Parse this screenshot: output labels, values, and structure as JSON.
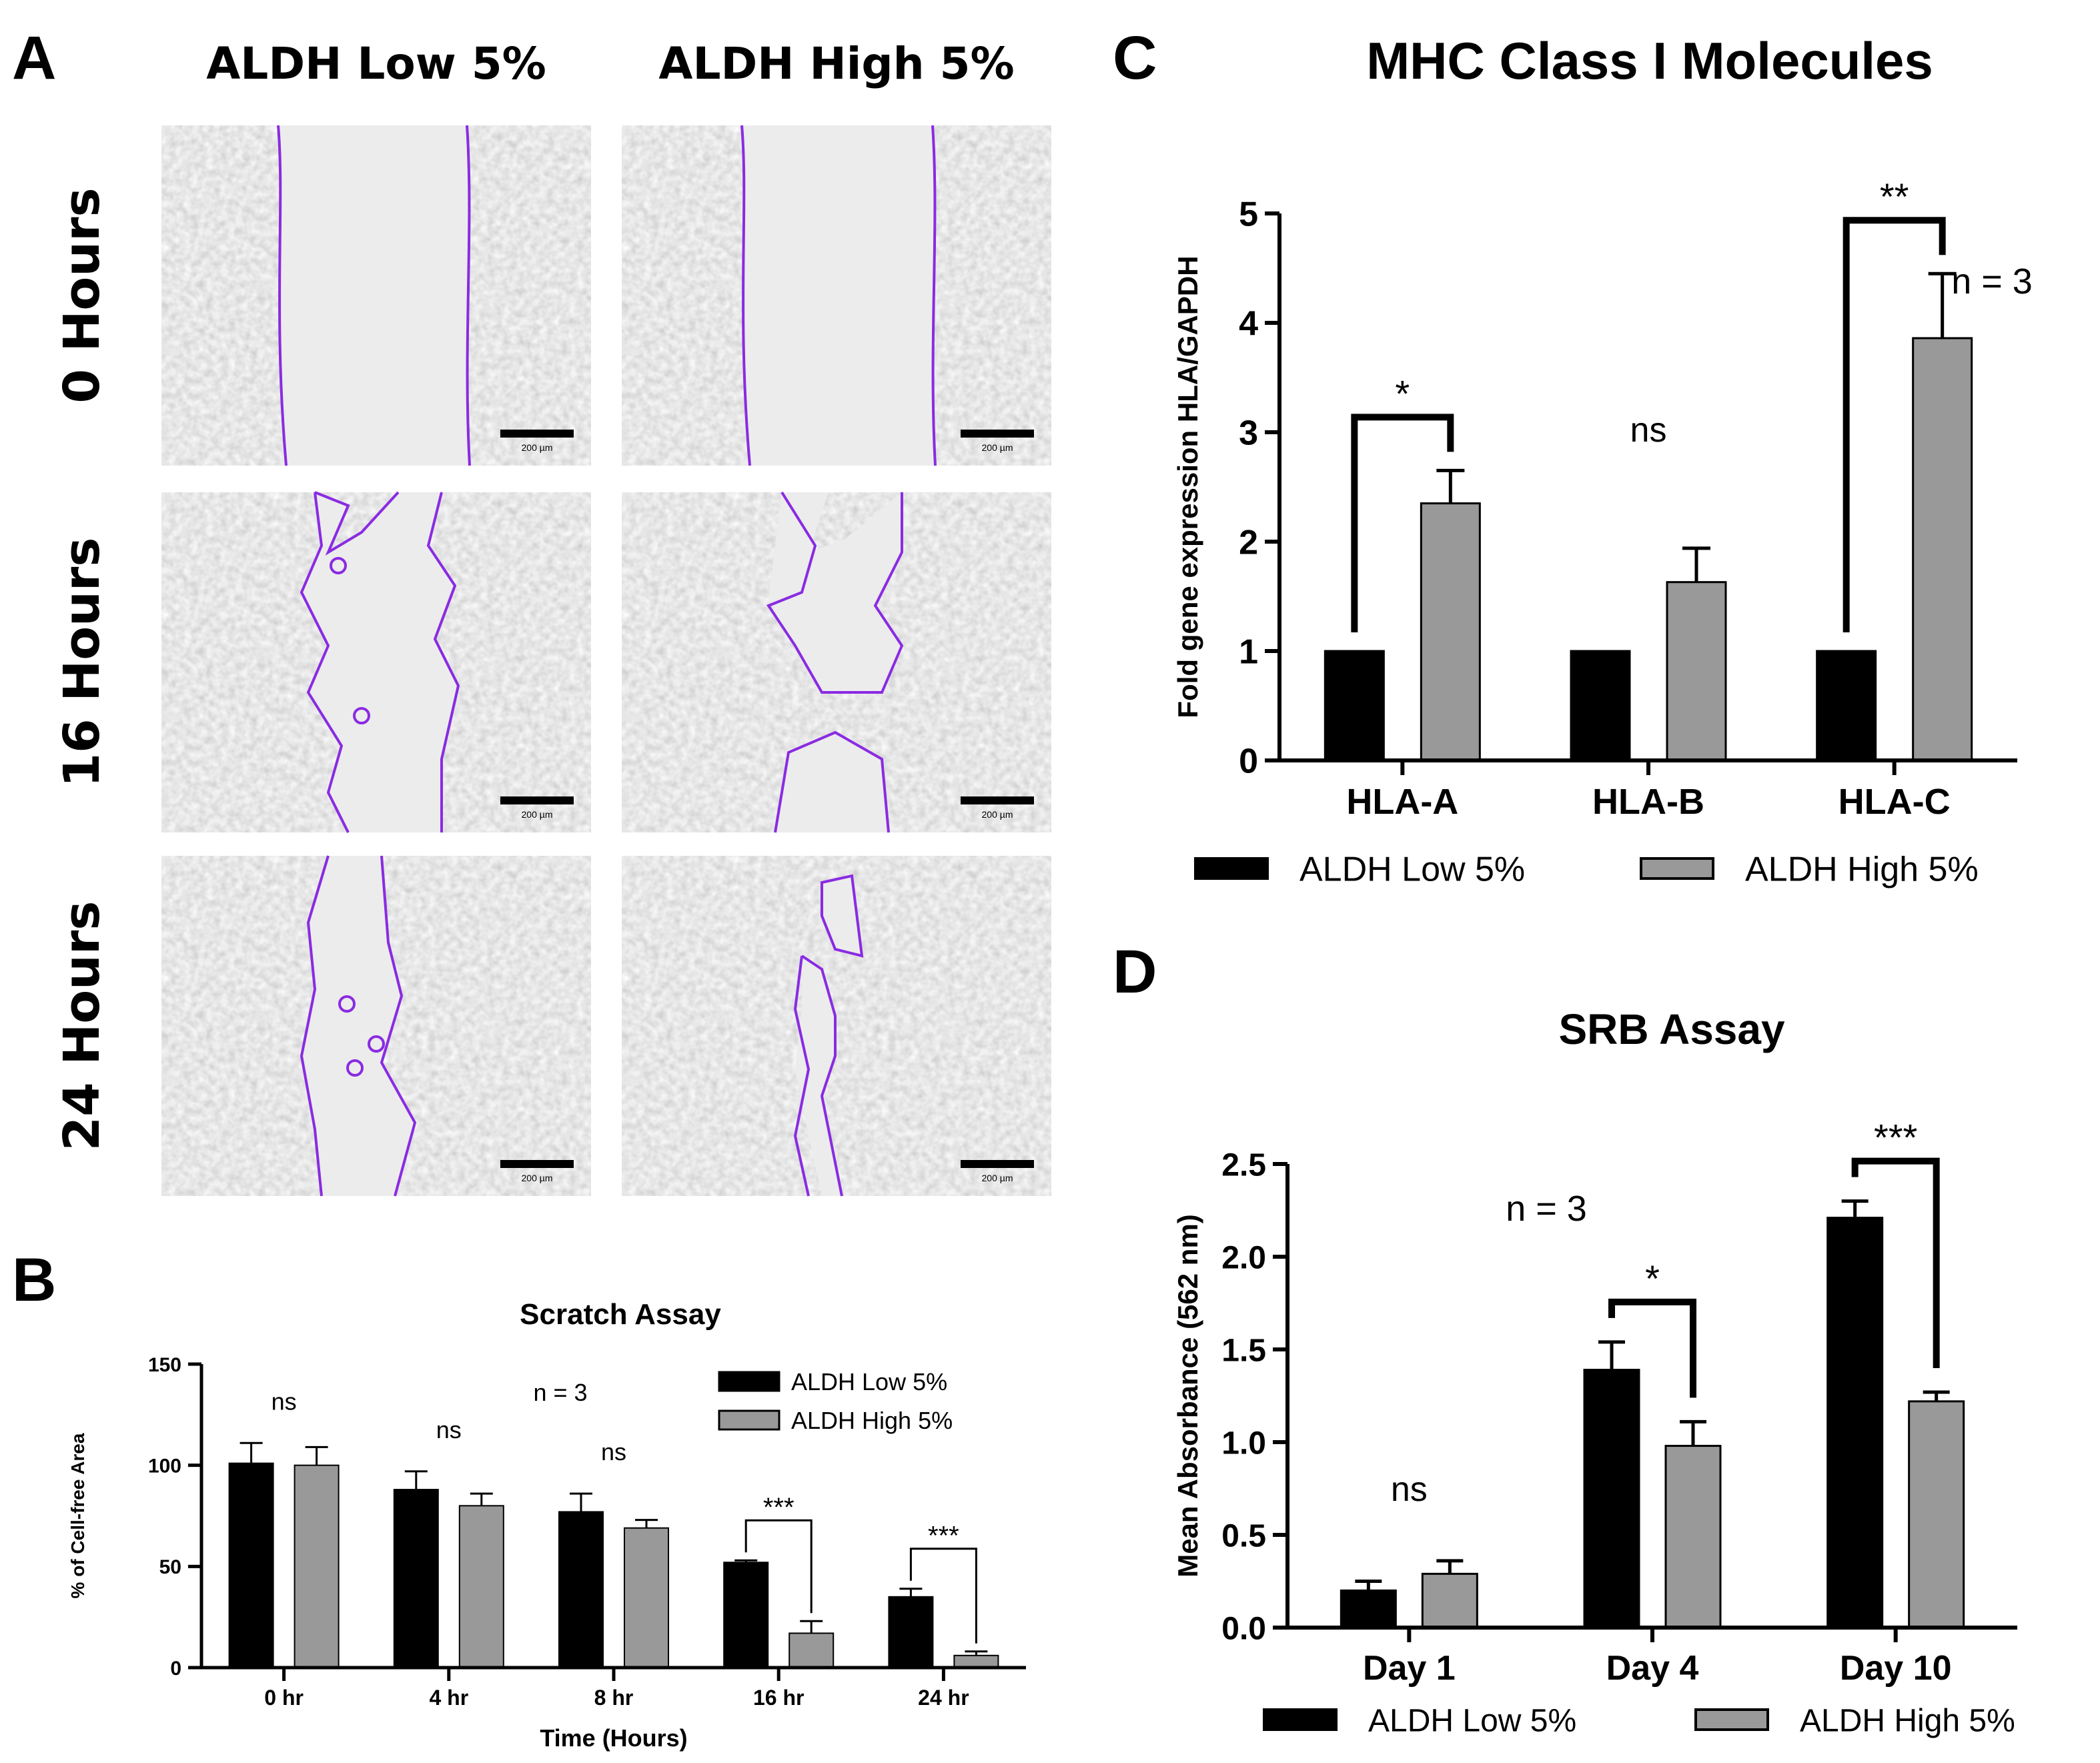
{
  "panel_a": {
    "letter": "A",
    "columns": [
      "ALDH Low 5%",
      "ALDH High 5%"
    ],
    "rows": [
      "0 Hours",
      "16 Hours",
      "24 Hours"
    ],
    "scale_bar": "200 µm",
    "outline_color": "#8a2be2"
  },
  "chart_data": [
    {
      "panel": "B",
      "type": "bar",
      "title": "Scratch Assay",
      "xlabel": "Time (Hours)",
      "ylabel": "% of Cell-free Area",
      "categories": [
        "0 hr",
        "4 hr",
        "8 hr",
        "16 hr",
        "24 hr"
      ],
      "ylim": [
        0,
        150
      ],
      "yticks": [
        0,
        50,
        100,
        150
      ],
      "series": [
        {
          "name": "ALDH Low 5%",
          "color": "#000000",
          "values": [
            101,
            88,
            77,
            52,
            35
          ],
          "errors": [
            10,
            9,
            9,
            1,
            4
          ]
        },
        {
          "name": "ALDH High 5%",
          "color": "#999999",
          "values": [
            100,
            80,
            69,
            17,
            6
          ],
          "errors": [
            9,
            6,
            4,
            6,
            2
          ]
        }
      ],
      "significance": [
        {
          "category": 0,
          "label": "ns",
          "bracket": false
        },
        {
          "category": 1,
          "label": "ns",
          "bracket": false
        },
        {
          "category": 2,
          "label": "ns",
          "bracket": false
        },
        {
          "category": 3,
          "label": "***",
          "bracket": true
        },
        {
          "category": 4,
          "label": "***",
          "bracket": true
        }
      ],
      "annotation": "n = 3",
      "legend_position": "top-right",
      "grid": false
    },
    {
      "panel": "C",
      "type": "bar",
      "title": "MHC Class I Molecules",
      "xlabel": "",
      "ylabel": "Fold gene expression HLA/GAPDH",
      "categories": [
        "HLA-A",
        "HLA-B",
        "HLA-C"
      ],
      "ylim": [
        0,
        5
      ],
      "yticks": [
        0,
        1,
        2,
        3,
        4,
        5
      ],
      "series": [
        {
          "name": "ALDH Low 5%",
          "color": "#000000",
          "values": [
            1,
            1,
            1
          ],
          "errors": [
            0,
            0,
            0
          ]
        },
        {
          "name": "ALDH High 5%",
          "color": "#999999",
          "values": [
            2.35,
            1.63,
            3.86
          ],
          "errors": [
            0.3,
            0.31,
            0.59
          ]
        }
      ],
      "significance": [
        {
          "category": 0,
          "label": "*",
          "bracket": true
        },
        {
          "category": 1,
          "label": "ns",
          "bracket": false
        },
        {
          "category": 2,
          "label": "**",
          "bracket": true
        }
      ],
      "annotation": "n = 3",
      "legend_position": "bottom",
      "grid": false
    },
    {
      "panel": "D",
      "type": "bar",
      "title": "SRB Assay",
      "xlabel": "",
      "ylabel": "Mean Absorbance (562 nm)",
      "categories": [
        "Day 1",
        "Day 4",
        "Day 10"
      ],
      "ylim": [
        0,
        2.5
      ],
      "yticks": [
        "0.0",
        "0.5",
        "1.0",
        "1.5",
        "2.0",
        "2.5"
      ],
      "series": [
        {
          "name": "ALDH Low 5%",
          "color": "#000000",
          "values": [
            0.2,
            1.39,
            2.21
          ],
          "errors": [
            0.05,
            0.15,
            0.09
          ]
        },
        {
          "name": "ALDH High 5%",
          "color": "#999999",
          "values": [
            0.29,
            0.98,
            1.22
          ],
          "errors": [
            0.07,
            0.13,
            0.05
          ]
        }
      ],
      "significance": [
        {
          "category": 0,
          "label": "ns",
          "bracket": false
        },
        {
          "category": 1,
          "label": "*",
          "bracket": true
        },
        {
          "category": 2,
          "label": "***",
          "bracket": true
        }
      ],
      "annotation": "n = 3",
      "legend_position": "bottom",
      "grid": false
    }
  ]
}
